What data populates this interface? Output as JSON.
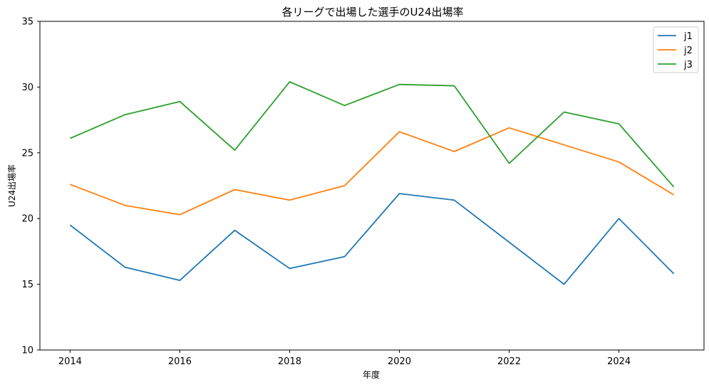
{
  "chart_data": {
    "type": "line",
    "title": "各リーグで出場した選手のU24出場率",
    "xlabel": "年度",
    "ylabel": "U24出場率",
    "x": [
      2014,
      2015,
      2016,
      2017,
      2018,
      2019,
      2020,
      2021,
      2022,
      2023,
      2024,
      2025
    ],
    "xlim": [
      2013.45,
      2025.55
    ],
    "ylim": [
      10,
      35
    ],
    "xticks": [
      2014,
      2016,
      2018,
      2020,
      2022,
      2024
    ],
    "yticks": [
      10,
      15,
      20,
      25,
      30,
      35
    ],
    "grid": false,
    "legend_position": "top-right",
    "series": [
      {
        "name": "j1",
        "color": "#1f77b4",
        "values": [
          19.5,
          16.3,
          15.3,
          19.1,
          16.2,
          17.1,
          21.9,
          21.4,
          18.2,
          15.0,
          20.0,
          15.8
        ]
      },
      {
        "name": "j2",
        "color": "#ff7f0e",
        "values": [
          22.6,
          21.0,
          20.3,
          22.2,
          21.4,
          22.5,
          26.6,
          25.1,
          26.9,
          25.6,
          24.3,
          21.8
        ]
      },
      {
        "name": "j3",
        "color": "#2ca02c",
        "values": [
          26.1,
          27.9,
          28.9,
          25.2,
          30.4,
          28.6,
          30.2,
          30.1,
          24.2,
          28.1,
          27.2,
          22.4
        ]
      }
    ]
  }
}
